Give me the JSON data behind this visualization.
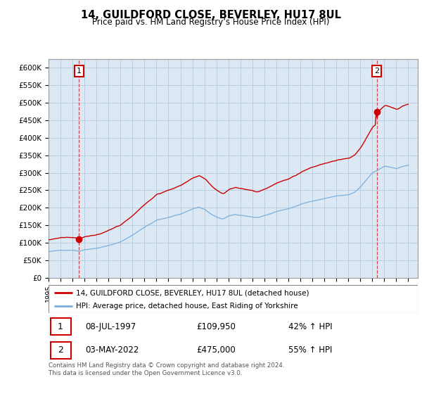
{
  "title": "14, GUILDFORD CLOSE, BEVERLEY, HU17 8UL",
  "subtitle": "Price paid vs. HM Land Registry’s House Price Index (HPI)",
  "ylabel_ticks": [
    "£0",
    "£50K",
    "£100K",
    "£150K",
    "£200K",
    "£250K",
    "£300K",
    "£350K",
    "£400K",
    "£450K",
    "£500K",
    "£550K",
    "£600K"
  ],
  "ytick_values": [
    0,
    50000,
    100000,
    150000,
    200000,
    250000,
    300000,
    350000,
    400000,
    450000,
    500000,
    550000,
    600000
  ],
  "ylim": [
    0,
    625000
  ],
  "hpi_color": "#7aaddb",
  "price_color": "#cc0000",
  "sale1_year": 1997.54,
  "sale1_price": 109950,
  "sale2_year": 2022.37,
  "sale2_price": 475000,
  "legend_line1": "14, GUILDFORD CLOSE, BEVERLEY, HU17 8UL (detached house)",
  "legend_line2": "HPI: Average price, detached house, East Riding of Yorkshire",
  "table_row1_num": "1",
  "table_row1_date": "08-JUL-1997",
  "table_row1_price": "£109,950",
  "table_row1_hpi": "42% ↑ HPI",
  "table_row2_num": "2",
  "table_row2_date": "03-MAY-2022",
  "table_row2_price": "£475,000",
  "table_row2_hpi": "55% ↑ HPI",
  "footnote": "Contains HM Land Registry data © Crown copyright and database right 2024.\nThis data is licensed under the Open Government Licence v3.0.",
  "background_color": "#ffffff",
  "plot_bg_color": "#dce9f5",
  "grid_color": "#b8cfe0",
  "xlim_start": 1995.0,
  "xlim_end": 2025.8
}
